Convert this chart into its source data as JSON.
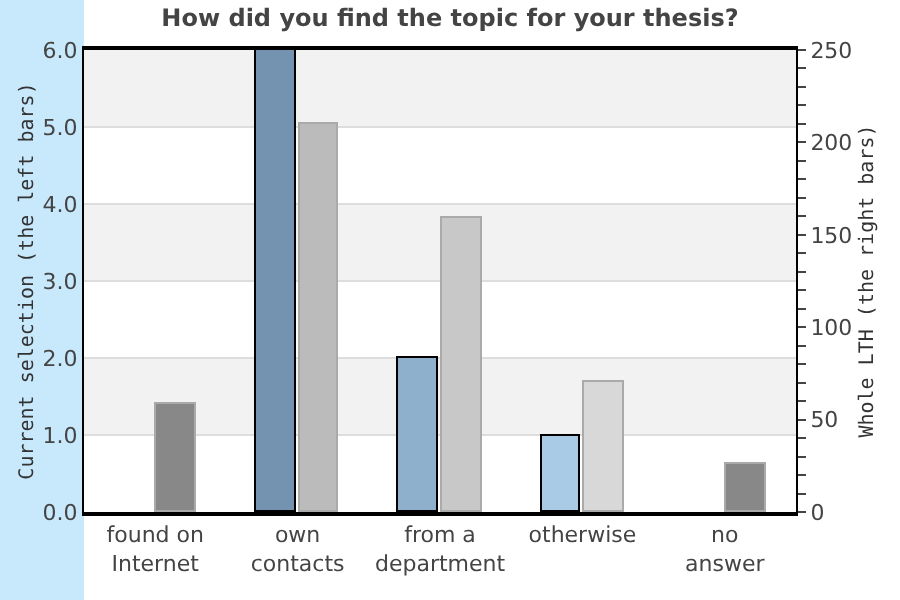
{
  "chart_data": {
    "type": "bar",
    "title": "How did you find the topic for your thesis?",
    "categories": [
      "found on Internet",
      "own contacts",
      "from a department",
      "otherwise",
      "no answer"
    ],
    "series": [
      {
        "values": [
          0,
          6,
          2,
          1,
          0
        ],
        "colors": [
          "#7393b0",
          "#7393b0",
          "#8fb0cc",
          "#a9cbe6",
          "#a9cbe6"
        ]
      },
      {
        "values": [
          58,
          210,
          159,
          70,
          26
        ],
        "axis": "y2",
        "colors": [
          "#888888",
          "#bbbbbb",
          "#c8c8c8",
          "#d8d8d8",
          "#888888"
        ]
      }
    ],
    "ylabel": "Current selection (the left bars)",
    "y2label": "Whole LTH (the right bars)",
    "ylim": [
      0,
      6
    ],
    "yticks": [
      {
        "value": 0,
        "label": "0.0"
      },
      {
        "value": 1,
        "label": "1.0"
      },
      {
        "value": 2,
        "label": "2.0"
      },
      {
        "value": 3,
        "label": "3.0"
      },
      {
        "value": 4,
        "label": "4.0"
      },
      {
        "value": 5,
        "label": "5.0"
      },
      {
        "value": 6,
        "label": "6.0"
      }
    ],
    "y2lim": [
      0,
      250
    ],
    "y2ticks": [
      0,
      {
        "value": 10,
        "label": null
      },
      {
        "value": 20,
        "label": null
      },
      {
        "value": 30,
        "label": null
      },
      {
        "value": 40,
        "label": null
      },
      50,
      {
        "value": 60,
        "label": null
      },
      {
        "value": 70,
        "label": null
      },
      {
        "value": 80,
        "label": null
      },
      {
        "value": 90,
        "label": null
      },
      100,
      {
        "value": 110,
        "label": null
      },
      {
        "value": 120,
        "label": null
      },
      {
        "value": 130,
        "label": null
      },
      {
        "value": 140,
        "label": null
      },
      150,
      {
        "value": 160,
        "label": null
      },
      {
        "value": 170,
        "label": null
      },
      {
        "value": 180,
        "label": null
      },
      {
        "value": 190,
        "label": null
      },
      200,
      {
        "value": 210,
        "label": null
      },
      {
        "value": 220,
        "label": null
      },
      {
        "value": 230,
        "label": null
      },
      {
        "value": 240,
        "label": null
      },
      250
    ],
    "bands": [
      {
        "axis": "y",
        "from": 1,
        "to": 2,
        "color": "#f2f2f2"
      },
      {
        "axis": "y",
        "from": 3,
        "to": 4,
        "color": "#f2f2f2"
      },
      {
        "axis": "y",
        "from": 5,
        "to": 6,
        "color": "#f2f2f2"
      }
    ],
    "grid": "y"
  }
}
